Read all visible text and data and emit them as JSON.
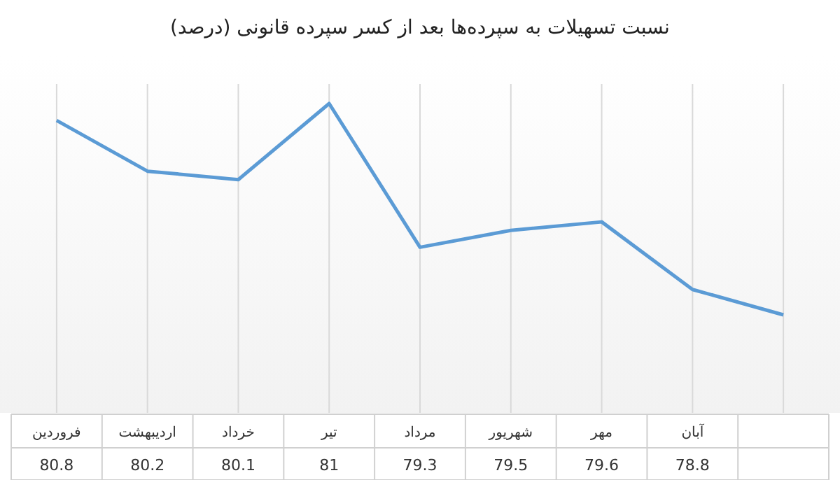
{
  "chart_data": {
    "type": "line",
    "title": "نسبت تسهیلات به سپرده‌ها بعد از کسر سپرده قانونی (درصد)",
    "categories": [
      "فروردین",
      "اردیبهشت",
      "خرداد",
      "تیر",
      "مرداد",
      "شهریور",
      "مهر",
      "آبان",
      null
    ],
    "series": [
      {
        "color": "#5b9bd5",
        "values": [
          80.8,
          80.2,
          80.1,
          81,
          79.3,
          79.5,
          79.6,
          78.8,
          78.5
        ],
        "value_labels": [
          "80.8",
          "80.2",
          "80.1",
          "81",
          "79.3",
          "79.5",
          "79.6",
          "78.8",
          null
        ]
      }
    ],
    "grid": "x",
    "marker": "none"
  }
}
